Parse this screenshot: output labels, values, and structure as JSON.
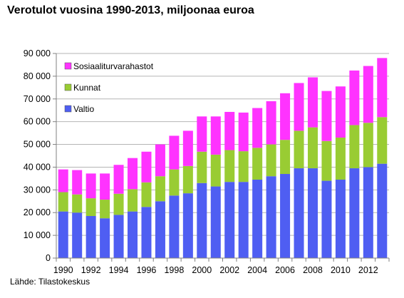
{
  "title": "Verotulot vuosina 1990-2013, miljoonaa euroa",
  "source": "Lähde: Tilastokeskus",
  "colors": {
    "Valtio": "#4f5ef2",
    "Kunnat": "#99cc33",
    "Sosiaaliturvarahastot": "#ff33ff"
  },
  "chart_data": {
    "type": "bar",
    "stacked": true,
    "title": "Verotulot vuosina 1990-2013, miljoonaa euroa",
    "categories": [
      "1990",
      "1991",
      "1992",
      "1993",
      "1994",
      "1995",
      "1996",
      "1997",
      "1998",
      "1999",
      "2000",
      "2001",
      "2002",
      "2003",
      "2004",
      "2005",
      "2006",
      "2007",
      "2008",
      "2009",
      "2010",
      "2011",
      "2012",
      "2013"
    ],
    "x_tick_labels": [
      "1990",
      "1992",
      "1994",
      "1996",
      "1998",
      "2000",
      "2002",
      "2004",
      "2006",
      "2008",
      "2010",
      "2012"
    ],
    "y_tick_labels": [
      "0",
      "10 000",
      "20 000",
      "30 000",
      "40 000",
      "50 000",
      "60 000",
      "70 000",
      "80 000",
      "90 000"
    ],
    "ylim": [
      0,
      90000
    ],
    "grid": true,
    "legend_position": "top-left",
    "series": [
      {
        "name": "Valtio",
        "values": [
          20500,
          20000,
          18500,
          17500,
          19000,
          20500,
          22500,
          25000,
          27500,
          28500,
          33000,
          31500,
          33500,
          33500,
          34500,
          36000,
          37000,
          39500,
          39500,
          34000,
          34500,
          39500,
          40000,
          41500
        ]
      },
      {
        "name": "Kunnat",
        "values": [
          8500,
          8000,
          7800,
          8200,
          9300,
          9800,
          10800,
          11000,
          11500,
          12000,
          13800,
          14000,
          14000,
          13500,
          14000,
          14000,
          15000,
          16500,
          18000,
          17500,
          18500,
          19000,
          19500,
          20500
        ]
      },
      {
        "name": "Sosiaaliturvarahastot",
        "values": [
          10000,
          10700,
          10900,
          11500,
          12700,
          13700,
          13500,
          14000,
          14800,
          15500,
          15500,
          16800,
          16800,
          17000,
          17500,
          19000,
          20500,
          21000,
          22000,
          22000,
          22500,
          24000,
          25000,
          26000
        ]
      }
    ]
  }
}
